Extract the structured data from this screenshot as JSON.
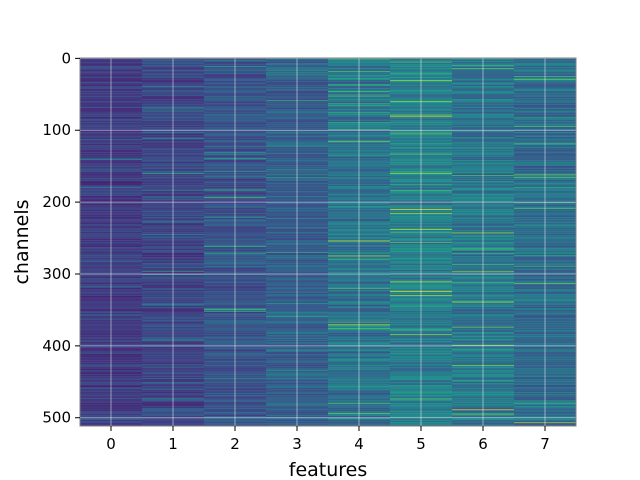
{
  "chart_data": {
    "type": "heatmap",
    "title": "",
    "xlabel": "features",
    "ylabel": "channels",
    "x_categories": [
      "0",
      "1",
      "2",
      "3",
      "4",
      "5",
      "6",
      "7"
    ],
    "y_range": [
      0,
      511
    ],
    "y_ticks": [
      0,
      100,
      200,
      300,
      400,
      500
    ],
    "n_rows": 512,
    "n_cols": 8,
    "colormap": "viridis",
    "grid": true,
    "column_intensity_profile": [
      0.18,
      0.21,
      0.26,
      0.3,
      0.38,
      0.43,
      0.4,
      0.35
    ],
    "colors": {
      "low": "#440154",
      "mid": "#21918c",
      "high": "#fde725",
      "grid": "#ffffff",
      "frame": "#808080"
    }
  }
}
